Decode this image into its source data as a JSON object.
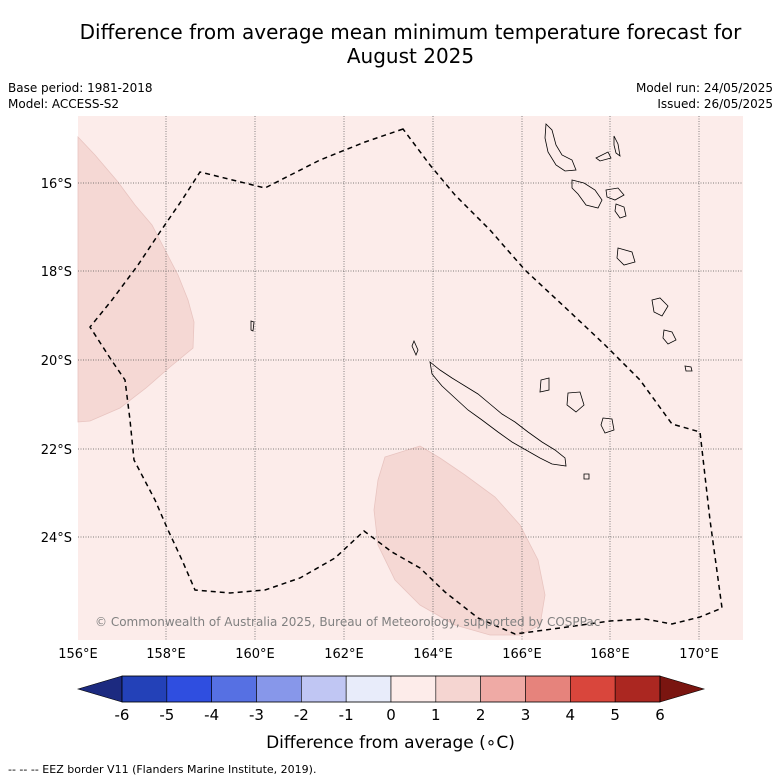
{
  "title_line1": "Difference from average mean minimum temperature forecast for",
  "title_line2": "August 2025",
  "base_period": "Base period: 1981-2018",
  "model": "Model: ACCESS-S2",
  "model_run": "Model run: 24/05/2025",
  "issued": "Issued: 26/05/2025",
  "copyright": "© Commonwealth of Australia 2025, Bureau of Meteorology, supported by COSPPac",
  "map": {
    "lon_ticks": [
      "156°E",
      "158°E",
      "160°E",
      "162°E",
      "164°E",
      "166°E",
      "168°E",
      "170°E"
    ],
    "lat_ticks": [
      "16°S",
      "18°S",
      "20°S",
      "22°S",
      "24°S"
    ],
    "colors": {
      "background_anomaly": "#fcecea",
      "warm_patch": "#f5d8d4",
      "eez_line": "#000000"
    }
  },
  "colorbar": {
    "ticks": [
      "-6",
      "-5",
      "-4",
      "-3",
      "-2",
      "-1",
      "0",
      "1",
      "2",
      "3",
      "4",
      "5",
      "6"
    ],
    "colors": [
      "#1c2a80",
      "#2341b8",
      "#2f4ee0",
      "#5670e3",
      "#8797ea",
      "#c0c6f3",
      "#e8ecfa",
      "#fdecea",
      "#f5d5d1",
      "#efaaa5",
      "#e6837c",
      "#d9463c",
      "#ab2721",
      "#7a1510"
    ],
    "label": "Difference from average (∘C)"
  },
  "footer": "--  --  -- EEZ border V11 (Flanders Marine Institute, 2019)."
}
